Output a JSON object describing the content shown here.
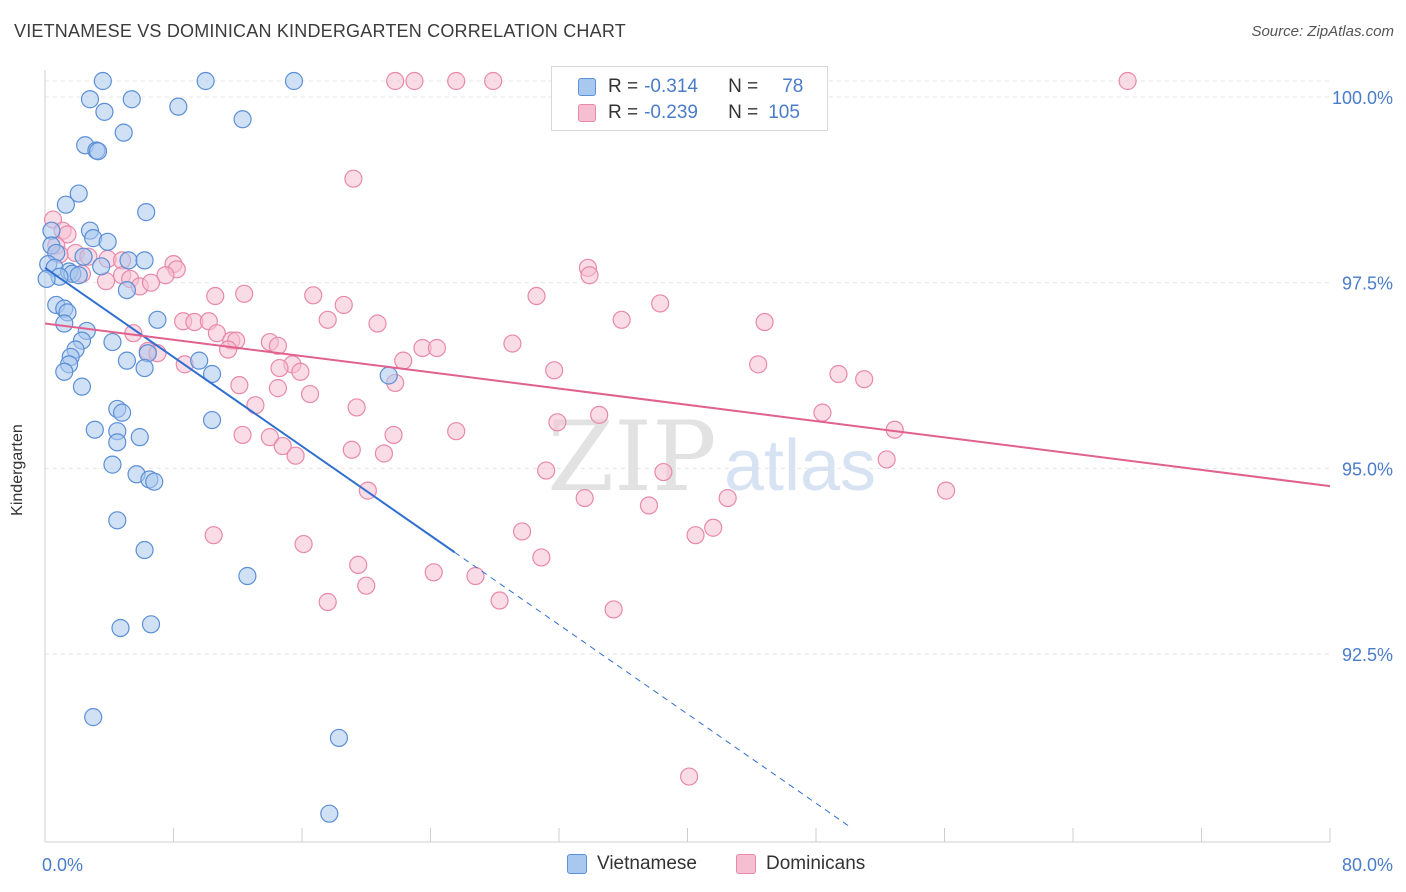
{
  "title": "VIETNAMESE VS DOMINICAN KINDERGARTEN CORRELATION CHART",
  "source": "Source: ZipAtlas.com",
  "watermark": {
    "zip": "ZIP",
    "atlas": "atlas"
  },
  "legend_top": {
    "rows": [
      {
        "r_label": "R =",
        "r_value": "-0.314",
        "n_label": "N =",
        "n_value": "78"
      },
      {
        "r_label": "R =",
        "r_value": "-0.239",
        "n_label": "N =",
        "n_value": "105"
      }
    ]
  },
  "legend_bottom": {
    "items": [
      "Vietnamese",
      "Dominicans"
    ]
  },
  "colors": {
    "vietnamese_fill": "#a9c8ef",
    "vietnamese_stroke": "#5b8fd6",
    "vietnamese_line": "#2f6fd0",
    "dominican_fill": "#f6bfd1",
    "dominican_stroke": "#e889aa",
    "dominican_line": "#e0608e",
    "axis_label": "#4a7cc9",
    "grid": "#e6e6e6"
  },
  "chart_data": {
    "type": "scatter",
    "title": "VIETNAMESE VS DOMINICAN KINDERGARTEN CORRELATION CHART",
    "xlabel": "",
    "ylabel": "Kindergarten",
    "xlim": [
      0.0,
      80.0
    ],
    "ylim": [
      90.0,
      100.2
    ],
    "x_tick_labels": [
      "0.0%",
      "80.0%"
    ],
    "y_ticks": [
      92.5,
      95.0,
      97.5,
      100.0
    ],
    "y_tick_labels": [
      "92.5%",
      "95.0%",
      "97.5%",
      "100.0%"
    ],
    "grid": true,
    "series": [
      {
        "name": "Vietnamese",
        "r": -0.314,
        "n": 78,
        "trend": {
          "x0": 0.0,
          "y0": 97.7,
          "x1": 25.5,
          "y1": 93.87,
          "dashed_to_x": 50.0
        },
        "points": [
          [
            3.6,
            100.2
          ],
          [
            5.4,
            99.97
          ],
          [
            10.0,
            100.2
          ],
          [
            15.5,
            100.2
          ],
          [
            2.8,
            99.97
          ],
          [
            8.3,
            99.87
          ],
          [
            3.7,
            99.8
          ],
          [
            12.3,
            99.7
          ],
          [
            4.9,
            99.52
          ],
          [
            2.5,
            99.35
          ],
          [
            3.2,
            99.28
          ],
          [
            3.3,
            99.27
          ],
          [
            2.1,
            98.7
          ],
          [
            1.3,
            98.55
          ],
          [
            6.3,
            98.45
          ],
          [
            0.4,
            98.2
          ],
          [
            2.8,
            98.2
          ],
          [
            3.0,
            98.1
          ],
          [
            3.9,
            98.05
          ],
          [
            0.4,
            98.0
          ],
          [
            0.7,
            97.9
          ],
          [
            2.4,
            97.85
          ],
          [
            5.2,
            97.8
          ],
          [
            6.2,
            97.8
          ],
          [
            0.2,
            97.75
          ],
          [
            3.5,
            97.72
          ],
          [
            0.6,
            97.7
          ],
          [
            1.5,
            97.65
          ],
          [
            1.7,
            97.62
          ],
          [
            2.1,
            97.6
          ],
          [
            0.9,
            97.58
          ],
          [
            0.1,
            97.55
          ],
          [
            5.1,
            97.4
          ],
          [
            0.7,
            97.2
          ],
          [
            1.2,
            97.15
          ],
          [
            1.4,
            97.1
          ],
          [
            7.0,
            97.0
          ],
          [
            1.2,
            96.95
          ],
          [
            2.6,
            96.85
          ],
          [
            2.3,
            96.72
          ],
          [
            4.2,
            96.7
          ],
          [
            1.9,
            96.6
          ],
          [
            6.4,
            96.55
          ],
          [
            1.6,
            96.5
          ],
          [
            5.1,
            96.45
          ],
          [
            9.6,
            96.45
          ],
          [
            1.5,
            96.4
          ],
          [
            6.2,
            96.35
          ],
          [
            1.2,
            96.3
          ],
          [
            10.4,
            96.27
          ],
          [
            21.4,
            96.25
          ],
          [
            2.3,
            96.1
          ],
          [
            4.5,
            95.8
          ],
          [
            4.8,
            95.75
          ],
          [
            10.4,
            95.65
          ],
          [
            3.1,
            95.52
          ],
          [
            4.5,
            95.5
          ],
          [
            5.9,
            95.42
          ],
          [
            4.5,
            95.35
          ],
          [
            4.2,
            95.05
          ],
          [
            5.7,
            94.92
          ],
          [
            6.5,
            94.85
          ],
          [
            6.8,
            94.82
          ],
          [
            4.5,
            94.3
          ],
          [
            6.2,
            93.9
          ],
          [
            12.6,
            93.55
          ],
          [
            4.7,
            92.85
          ],
          [
            6.6,
            92.9
          ],
          [
            3.0,
            91.65
          ],
          [
            18.3,
            91.37
          ],
          [
            17.7,
            90.35
          ]
        ]
      },
      {
        "name": "Dominicans",
        "r": -0.239,
        "n": 105,
        "trend": {
          "x0": 0.0,
          "y0": 96.95,
          "x1": 80.0,
          "y1": 94.76
        },
        "points": [
          [
            21.8,
            100.2
          ],
          [
            23.0,
            100.2
          ],
          [
            25.6,
            100.2
          ],
          [
            27.9,
            100.2
          ],
          [
            32.5,
            100.2
          ],
          [
            67.4,
            100.2
          ],
          [
            19.2,
            98.9
          ],
          [
            0.5,
            98.35
          ],
          [
            1.1,
            98.2
          ],
          [
            1.4,
            98.15
          ],
          [
            0.7,
            98.0
          ],
          [
            1.9,
            97.9
          ],
          [
            0.9,
            97.88
          ],
          [
            3.9,
            97.82
          ],
          [
            2.7,
            97.85
          ],
          [
            4.8,
            97.8
          ],
          [
            8.0,
            97.75
          ],
          [
            8.2,
            97.68
          ],
          [
            2.3,
            97.62
          ],
          [
            33.8,
            97.7
          ],
          [
            33.9,
            97.6
          ],
          [
            4.8,
            97.6
          ],
          [
            5.3,
            97.55
          ],
          [
            7.5,
            97.6
          ],
          [
            3.8,
            97.52
          ],
          [
            5.9,
            97.45
          ],
          [
            6.6,
            97.5
          ],
          [
            10.6,
            97.32
          ],
          [
            12.4,
            97.35
          ],
          [
            16.7,
            97.33
          ],
          [
            18.6,
            97.2
          ],
          [
            30.6,
            97.32
          ],
          [
            38.3,
            97.22
          ],
          [
            8.6,
            96.98
          ],
          [
            9.3,
            96.97
          ],
          [
            10.2,
            96.98
          ],
          [
            17.6,
            97.0
          ],
          [
            20.7,
            96.95
          ],
          [
            35.9,
            97.0
          ],
          [
            44.8,
            96.97
          ],
          [
            5.5,
            96.82
          ],
          [
            10.7,
            96.82
          ],
          [
            11.6,
            96.72
          ],
          [
            11.9,
            96.72
          ],
          [
            14.0,
            96.7
          ],
          [
            14.5,
            96.65
          ],
          [
            29.1,
            96.68
          ],
          [
            6.4,
            96.58
          ],
          [
            7.0,
            96.55
          ],
          [
            11.4,
            96.6
          ],
          [
            23.5,
            96.62
          ],
          [
            22.3,
            96.45
          ],
          [
            15.4,
            96.4
          ],
          [
            8.7,
            96.4
          ],
          [
            14.6,
            96.35
          ],
          [
            15.9,
            96.3
          ],
          [
            31.7,
            96.32
          ],
          [
            24.4,
            96.62
          ],
          [
            44.4,
            96.4
          ],
          [
            49.4,
            96.27
          ],
          [
            21.8,
            96.15
          ],
          [
            12.1,
            96.12
          ],
          [
            14.5,
            96.08
          ],
          [
            16.5,
            96.0
          ],
          [
            51.0,
            96.2
          ],
          [
            13.1,
            95.85
          ],
          [
            19.4,
            95.82
          ],
          [
            48.4,
            95.75
          ],
          [
            31.9,
            95.62
          ],
          [
            34.5,
            95.72
          ],
          [
            52.9,
            95.52
          ],
          [
            12.3,
            95.45
          ],
          [
            14.0,
            95.42
          ],
          [
            21.7,
            95.45
          ],
          [
            25.6,
            95.5
          ],
          [
            14.8,
            95.3
          ],
          [
            19.1,
            95.25
          ],
          [
            21.1,
            95.2
          ],
          [
            15.6,
            95.17
          ],
          [
            52.4,
            95.12
          ],
          [
            31.2,
            94.97
          ],
          [
            38.5,
            94.95
          ],
          [
            20.1,
            94.7
          ],
          [
            33.6,
            94.6
          ],
          [
            42.5,
            94.6
          ],
          [
            37.6,
            94.5
          ],
          [
            56.1,
            94.7
          ],
          [
            41.6,
            94.2
          ],
          [
            10.5,
            94.1
          ],
          [
            29.7,
            94.15
          ],
          [
            40.5,
            94.1
          ],
          [
            16.1,
            93.98
          ],
          [
            19.5,
            93.7
          ],
          [
            30.9,
            93.8
          ],
          [
            24.2,
            93.6
          ],
          [
            26.8,
            93.55
          ],
          [
            20.0,
            93.42
          ],
          [
            17.6,
            93.2
          ],
          [
            28.3,
            93.22
          ],
          [
            35.4,
            93.1
          ],
          [
            40.1,
            90.85
          ]
        ]
      }
    ]
  }
}
